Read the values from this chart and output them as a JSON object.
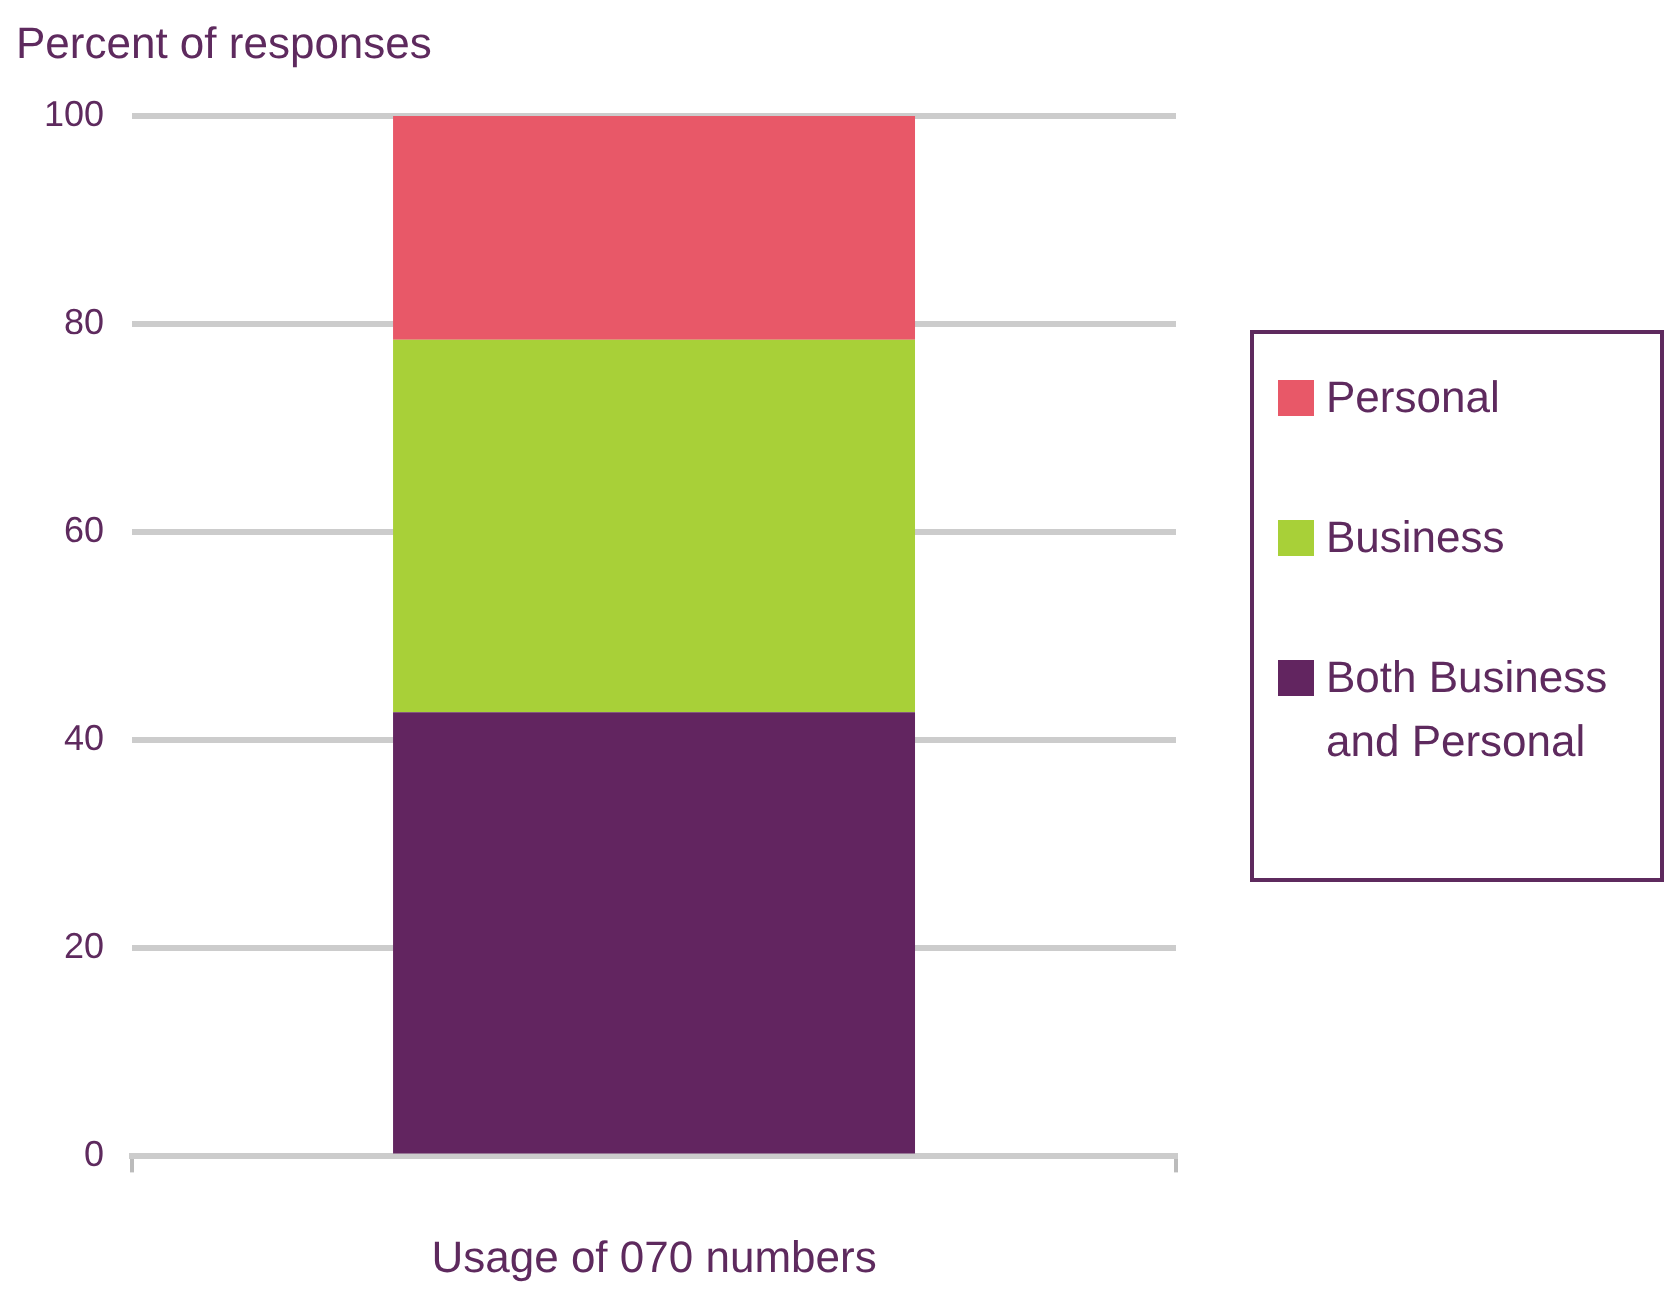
{
  "chart_data": {
    "type": "bar",
    "stacked": true,
    "ylabel": "Percent of responses",
    "xlabel": "Usage of 070 numbers",
    "categories": [
      null
    ],
    "series": [
      {
        "name": "Both Business and Personal",
        "color": "#622560",
        "values": [
          42.7
        ]
      },
      {
        "name": "Business",
        "color": "#a8d038",
        "values": [
          35.8
        ]
      },
      {
        "name": "Personal",
        "color": "#e85868",
        "values": [
          21.5
        ]
      }
    ],
    "ylim": [
      0,
      100
    ],
    "yticks": [
      0,
      20,
      40,
      60,
      80,
      100
    ],
    "grid": "y",
    "legend": "right"
  }
}
